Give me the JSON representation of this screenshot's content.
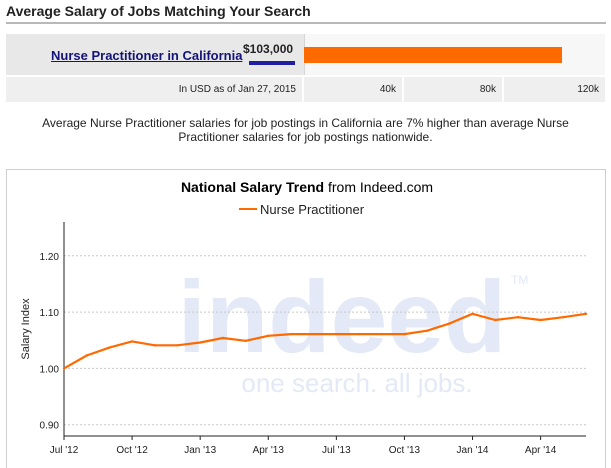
{
  "header": {
    "title": "Average Salary of Jobs Matching Your Search"
  },
  "salary": {
    "job_label": "Nurse Practitioner in California",
    "value_label": "$103,000",
    "value": 103000,
    "scale_max": 120000,
    "caption": "In USD as of Jan 27, 2015",
    "ticks": [
      "40k",
      "80k",
      "120k"
    ]
  },
  "summary": "Average Nurse Practitioner salaries for job postings in California are 7% higher than average Nurse Practitioner salaries for job postings nationwide.",
  "colors": {
    "accent": "#ff6a00",
    "link": "#13137a",
    "watermark": "#e3e9f7"
  },
  "watermark": {
    "logo_text": "indeed",
    "trademark": "TM",
    "tagline": "one search. all jobs."
  },
  "chart_data": {
    "type": "line",
    "title": "National Salary Trend",
    "title_suffix": "from Indeed.com",
    "ylabel": "Salary Index",
    "xlabel": "",
    "ylim": [
      0.88,
      1.26
    ],
    "yticks": [
      0.9,
      1.0,
      1.1,
      1.2
    ],
    "ytick_labels": [
      "0.90",
      "1.00",
      "1.10",
      "1.20"
    ],
    "xlim": [
      0,
      23
    ],
    "xticks": [
      0,
      3,
      6,
      9,
      12,
      15,
      18,
      21
    ],
    "xtick_labels": [
      "Jul '12",
      "Oct '12",
      "Jan '13",
      "Apr '13",
      "Jul '13",
      "Oct '13",
      "Jan '14",
      "Apr '14"
    ],
    "grid": true,
    "legend_position": "top-center",
    "series": [
      {
        "name": "Nurse Practitioner",
        "color": "#ff6a00",
        "x": [
          0,
          1,
          2,
          3,
          4,
          5,
          6,
          7,
          8,
          9,
          10,
          11,
          12,
          13,
          14,
          15,
          16,
          17,
          18,
          19,
          20,
          21,
          22,
          23
        ],
        "values": [
          1.0,
          1.023,
          1.037,
          1.048,
          1.041,
          1.041,
          1.046,
          1.054,
          1.049,
          1.058,
          1.061,
          1.061,
          1.061,
          1.061,
          1.061,
          1.061,
          1.067,
          1.08,
          1.097,
          1.086,
          1.091,
          1.086,
          1.091,
          1.097
        ]
      }
    ]
  }
}
